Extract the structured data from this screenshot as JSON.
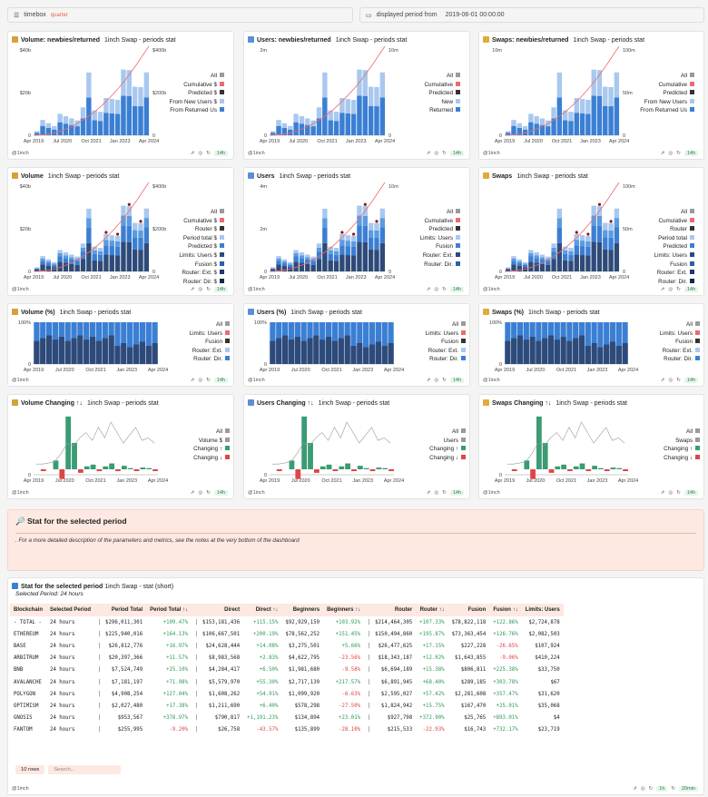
{
  "topbar": {
    "timebox_label": "timebox",
    "timebox_value": "quarter",
    "period_label": "displayed period from",
    "period_value": "2019-06-01 00:00:00"
  },
  "x_ticks": [
    "Apr 2019",
    "Jul 2020",
    "Oct 2021",
    "Jan 2023",
    "Apr 2024"
  ],
  "footer_source": "@1inch",
  "colors": {
    "accent": "#e8663d",
    "dark": "#2e4a78",
    "mid": "#3b7fd4",
    "light": "#a8c8ef",
    "green": "#3a9b74",
    "red": "#e04545",
    "curve": "#ee6b6b",
    "grey": "#9a9a9a"
  },
  "cards": [
    {
      "title": "Volume: newbies/returned",
      "subtitle": "1inch Swap - periods stat",
      "icon": "money-bag-icon",
      "freshness": "14h",
      "type": "stack2",
      "left_axis": [
        "$40b",
        "$20b",
        "0"
      ],
      "right_axis": [
        "$400b",
        "$200b",
        "0"
      ],
      "legend": [
        "All",
        "Cumulative $",
        "Predicted $",
        "From New Users $",
        "From Returned Us"
      ]
    },
    {
      "title": "Users: newbies/returned",
      "subtitle": "1inch Swap - periods stat",
      "icon": "user-icon",
      "freshness": "14h",
      "type": "stack2",
      "left_axis": [
        "2m",
        "0"
      ],
      "right_axis": [
        "10m",
        "0"
      ],
      "legend": [
        "All",
        "Cumulative",
        "Predicted",
        "New",
        "Returned"
      ]
    },
    {
      "title": "Swaps: newbies/returned",
      "subtitle": "1inch Swap - periods stat",
      "icon": "lightning-icon",
      "freshness": "14h",
      "type": "stack2",
      "left_axis": [
        "10m",
        "0"
      ],
      "right_axis": [
        "100m",
        "50m",
        "0"
      ],
      "legend": [
        "All",
        "Cumulative",
        "Predicted",
        "From New Users",
        "From Returned Us"
      ]
    },
    {
      "title": "Volume",
      "subtitle": "1inch Swap - periods stat",
      "icon": "money-bag-icon",
      "freshness": "14h",
      "type": "stack5",
      "left_axis": [
        "$40b",
        "$20b",
        "0"
      ],
      "right_axis": [
        "$400b",
        "$200b",
        "0"
      ],
      "legend": [
        "All",
        "Cumulative $",
        "Router $",
        "Period total $",
        "Predicted $",
        "Limits: Users $",
        "Fusion $",
        "Router: Ext. $",
        "Router: Dir. $"
      ]
    },
    {
      "title": "Users",
      "subtitle": "1inch Swap - periods stat",
      "icon": "user-icon",
      "freshness": "14h",
      "type": "stack5",
      "left_axis": [
        "4m",
        "2m",
        "0"
      ],
      "right_axis": [
        "10m",
        "0"
      ],
      "legend": [
        "All",
        "Cumulative",
        "Predicted",
        "Limits: Users",
        "Fusion",
        "Router: Ext.",
        "Router: Dir."
      ]
    },
    {
      "title": "Swaps",
      "subtitle": "1inch Swap - periods stat",
      "icon": "lightning-icon",
      "freshness": "14h",
      "type": "stack5",
      "left_axis": [
        "0"
      ],
      "right_axis": [
        "100m",
        "50m",
        "0"
      ],
      "legend": [
        "All",
        "Cumulative",
        "Router",
        "Period total",
        "Predicted",
        "Limits: Users",
        "Fusion",
        "Router: Ext.",
        "Router: Dir."
      ]
    },
    {
      "title": "Volume (%)",
      "subtitle": "1inch Swap - periods stat",
      "icon": "money-bag-icon",
      "freshness": "14h",
      "type": "pct",
      "left_axis": [
        "100%",
        "0"
      ],
      "right_axis": [],
      "legend": [
        "All",
        "Limits: Users",
        "Fusion",
        "Router: Ext.",
        "Router: Dir."
      ]
    },
    {
      "title": "Users (%)",
      "subtitle": "1inch Swap - periods stat",
      "icon": "user-icon",
      "freshness": "14h",
      "type": "pct",
      "left_axis": [
        "100%",
        "0"
      ],
      "right_axis": [],
      "legend": [
        "All",
        "Limits: Users",
        "Fusion",
        "Router: Ext.",
        "Router: Dir."
      ]
    },
    {
      "title": "Swaps (%)",
      "subtitle": "1inch Swap - periods stat",
      "icon": "lightning-icon",
      "freshness": "14h",
      "type": "pct",
      "left_axis": [
        "100%",
        "0"
      ],
      "right_axis": [],
      "legend": [
        "All",
        "Limits: Users",
        "Fusion",
        "Router: Ext.",
        "Router: Dir."
      ]
    },
    {
      "title": "Volume Changing ↑↓",
      "subtitle": "1inch Swap - periods stat",
      "icon": "money-bag-icon",
      "freshness": "14h",
      "type": "change",
      "left_axis": [
        "0"
      ],
      "right_axis": [],
      "legend": [
        "All",
        "Volume $",
        "Changing ↑",
        "Changing ↓"
      ]
    },
    {
      "title": "Users Changing ↑↓",
      "subtitle": "1inch Swap - periods stat",
      "icon": "user-icon",
      "freshness": "14h",
      "type": "change",
      "left_axis": [
        "0"
      ],
      "right_axis": [],
      "legend": [
        "All",
        "Users",
        "Changing ↑",
        "Changing ↓"
      ]
    },
    {
      "title": "Swaps Changing ↑↓",
      "subtitle": "1inch Swap - periods stat",
      "icon": "lightning-icon",
      "freshness": "14h",
      "type": "change",
      "left_axis": [
        "0"
      ],
      "right_axis": [],
      "legend": [
        "All",
        "Swaps",
        "Changing ↑",
        "Changing ↓"
      ]
    }
  ],
  "stat_section": {
    "title": "Stat for the selected period",
    "note": ". For a more detailed description of the parameters and metrics, see the notes at the very bottom of the dashboard"
  },
  "table_card": {
    "title": "Stat for the selected period",
    "subtitle": "1inch Swap - stat (short)",
    "selected_period": "Selected Period: 24 hours",
    "columns": [
      "Blockchain",
      "Selected Period",
      "Period Total",
      "Period Total ↑↓",
      "Direct",
      "Direct ↑↓",
      "Beginners",
      "Beginners ↑↓",
      "Router",
      "Router ↑↓",
      "Fusion",
      "Fusion ↑↓",
      "Limits: Users"
    ],
    "rows": [
      [
        "- TOTAL -",
        "24 hours",
        "$296,011,301",
        "+109.47%",
        "$153,181,436",
        "+115.15%",
        "$92,929,159",
        "+103.92%",
        "$214,464,305",
        "+107.33%",
        "$78,822,118",
        "+122.86%",
        "$2,724,878"
      ],
      [
        "ETHEREUM",
        "24 hours",
        "$225,940,016",
        "+164.13%",
        "$106,667,501",
        "+200.19%",
        "$78,562,252",
        "+151.45%",
        "$150,494,860",
        "+195.87%",
        "$73,363,454",
        "+126.76%",
        "$2,082,503"
      ],
      [
        "BASE",
        "24 hours",
        "$26,812,776",
        "+16.97%",
        "$24,628,444",
        "+14.08%",
        "$3,275,501",
        "+5.66%",
        "$26,477,625",
        "+17.15%",
        "$227,228",
        "-26.65%",
        "$107,924"
      ],
      [
        "ARBITRUM",
        "24 hours",
        "$20,397,366",
        "+11.57%",
        "$8,983,568",
        "+2.83%",
        "$4,622,795",
        "-23.56%",
        "$18,343,187",
        "+12.02%",
        "$1,643,855",
        "-9.06%",
        "$410,224"
      ],
      [
        "BNB",
        "24 hours",
        "$7,524,749",
        "+25.10%",
        "$4,284,417",
        "+6.50%",
        "$1,981,680",
        "-9.58%",
        "$6,694,189",
        "+15.38%",
        "$806,811",
        "+225.38%",
        "$33,750"
      ],
      [
        "AVALANCHE",
        "24 hours",
        "$7,181,197",
        "+71.98%",
        "$5,579,970",
        "+55.30%",
        "$2,717,139",
        "+217.57%",
        "$6,891,945",
        "+68.40%",
        "$289,185",
        "+303.78%",
        "$67"
      ],
      [
        "POLYGON",
        "24 hours",
        "$4,908,254",
        "+127.04%",
        "$1,608,262",
        "+54.91%",
        "$1,099,920",
        "-6.63%",
        "$2,595,027",
        "+57.42%",
        "$2,281,608",
        "+357.47%",
        "$31,620"
      ],
      [
        "OPTIMISM",
        "24 hours",
        "$2,027,480",
        "+17.38%",
        "$1,211,690",
        "+6.40%",
        "$578,298",
        "-27.50%",
        "$1,824,942",
        "+15.75%",
        "$167,470",
        "+25.01%",
        "$35,068"
      ],
      [
        "GNOSIS",
        "24 hours",
        "$953,567",
        "+378.97%",
        "$790,817",
        "+1,191.23%",
        "$134,894",
        "+23.01%",
        "$927,798",
        "+372.90%",
        "$25,765",
        "+893.01%",
        "$4"
      ],
      [
        "FANTOM",
        "24 hours",
        "$255,995",
        "-9.20%",
        "$26,758",
        "-43.57%",
        "$135,899",
        "-28.10%",
        "$215,533",
        "-22.93%",
        "$16,743",
        "+732.17%",
        "$23,719"
      ]
    ],
    "rows_label": "10 rows",
    "search_placeholder": "Search...",
    "freshness_left": "1h",
    "freshness_right": "20min"
  }
}
